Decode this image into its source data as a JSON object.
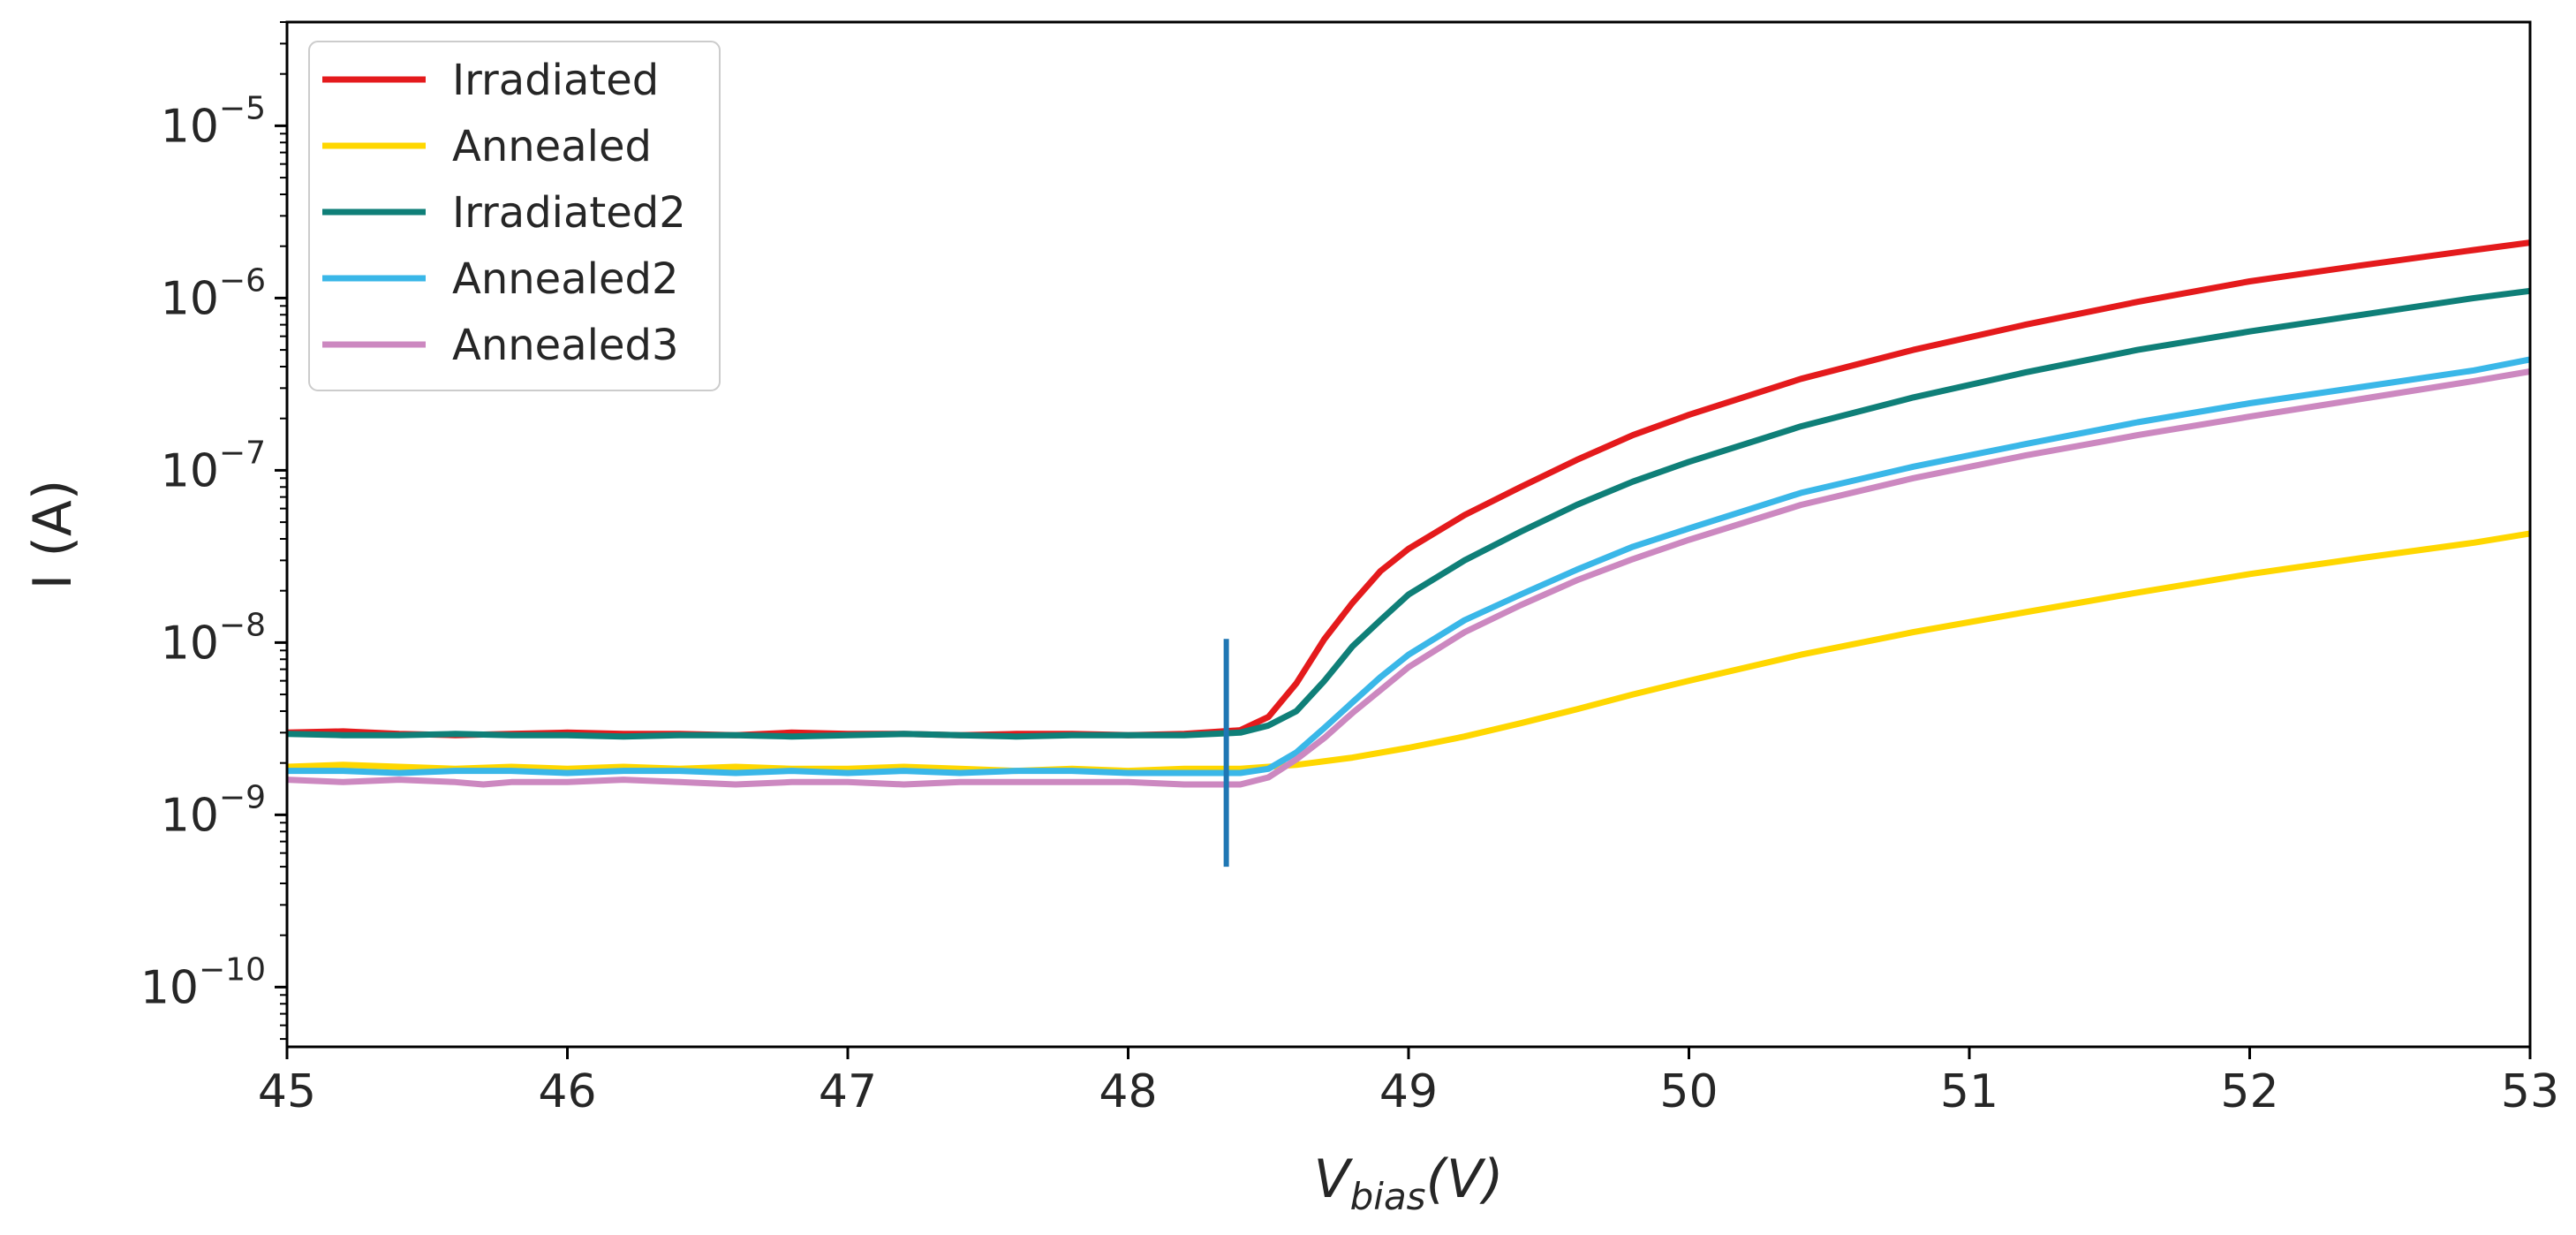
{
  "chart_data": {
    "type": "line",
    "title": "",
    "xlabel": "V",
    "xlabel_sub": "bias",
    "xlabel_unit": "(V)",
    "ylabel": "I (A)",
    "yscale": "log",
    "xlim": [
      45,
      53
    ],
    "ylim": [
      4.5e-11,
      4e-05
    ],
    "xticks": [
      "45",
      "46",
      "47",
      "48",
      "49",
      "50",
      "51",
      "52",
      "53"
    ],
    "yticks": [
      {
        "base": "10",
        "exp": "−10",
        "value": 1e-10
      },
      {
        "base": "10",
        "exp": "−9",
        "value": 1e-09
      },
      {
        "base": "10",
        "exp": "−8",
        "value": 1e-08
      },
      {
        "base": "10",
        "exp": "−7",
        "value": 1e-07
      },
      {
        "base": "10",
        "exp": "−6",
        "value": 1e-06
      },
      {
        "base": "10",
        "exp": "−5",
        "value": 1e-05
      }
    ],
    "legend_position": "top-left",
    "vertical_marker": {
      "x": 48.35,
      "ymin": 5e-10,
      "ymax": 1.05e-08,
      "color": "#1f77b4"
    },
    "series": [
      {
        "name": "Irradiated",
        "color": "#e41a1c",
        "points": [
          [
            45.0,
            3e-09
          ],
          [
            45.2,
            3.05e-09
          ],
          [
            45.4,
            2.95e-09
          ],
          [
            45.6,
            2.9e-09
          ],
          [
            45.8,
            2.95e-09
          ],
          [
            46.0,
            3e-09
          ],
          [
            46.2,
            2.95e-09
          ],
          [
            46.4,
            2.95e-09
          ],
          [
            46.6,
            2.9e-09
          ],
          [
            46.8,
            3e-09
          ],
          [
            47.0,
            2.95e-09
          ],
          [
            47.2,
            2.95e-09
          ],
          [
            47.4,
            2.9e-09
          ],
          [
            47.6,
            2.95e-09
          ],
          [
            47.8,
            2.95e-09
          ],
          [
            48.0,
            2.9e-09
          ],
          [
            48.2,
            2.95e-09
          ],
          [
            48.4,
            3.1e-09
          ],
          [
            48.5,
            3.7e-09
          ],
          [
            48.6,
            5.8e-09
          ],
          [
            48.7,
            1.05e-08
          ],
          [
            48.8,
            1.7e-08
          ],
          [
            48.9,
            2.6e-08
          ],
          [
            49.0,
            3.5e-08
          ],
          [
            49.2,
            5.5e-08
          ],
          [
            49.4,
            8e-08
          ],
          [
            49.6,
            1.15e-07
          ],
          [
            49.8,
            1.6e-07
          ],
          [
            50.0,
            2.1e-07
          ],
          [
            50.4,
            3.4e-07
          ],
          [
            50.8,
            5e-07
          ],
          [
            51.2,
            7e-07
          ],
          [
            51.6,
            9.5e-07
          ],
          [
            52.0,
            1.25e-06
          ],
          [
            52.4,
            1.55e-06
          ],
          [
            52.8,
            1.9e-06
          ],
          [
            53.0,
            2.1e-06
          ]
        ]
      },
      {
        "name": "Annealed",
        "color": "#ffd700",
        "points": [
          [
            45.0,
            1.9e-09
          ],
          [
            45.2,
            1.95e-09
          ],
          [
            45.4,
            1.9e-09
          ],
          [
            45.6,
            1.85e-09
          ],
          [
            45.8,
            1.9e-09
          ],
          [
            46.0,
            1.85e-09
          ],
          [
            46.2,
            1.9e-09
          ],
          [
            46.4,
            1.85e-09
          ],
          [
            46.6,
            1.9e-09
          ],
          [
            46.8,
            1.85e-09
          ],
          [
            47.0,
            1.85e-09
          ],
          [
            47.2,
            1.9e-09
          ],
          [
            47.4,
            1.85e-09
          ],
          [
            47.6,
            1.8e-09
          ],
          [
            47.8,
            1.85e-09
          ],
          [
            48.0,
            1.8e-09
          ],
          [
            48.2,
            1.85e-09
          ],
          [
            48.4,
            1.85e-09
          ],
          [
            48.6,
            1.95e-09
          ],
          [
            48.8,
            2.15e-09
          ],
          [
            49.0,
            2.45e-09
          ],
          [
            49.2,
            2.85e-09
          ],
          [
            49.4,
            3.4e-09
          ],
          [
            49.6,
            4.1e-09
          ],
          [
            49.8,
            5e-09
          ],
          [
            50.0,
            6e-09
          ],
          [
            50.4,
            8.5e-09
          ],
          [
            50.8,
            1.15e-08
          ],
          [
            51.2,
            1.5e-08
          ],
          [
            51.6,
            1.95e-08
          ],
          [
            52.0,
            2.5e-08
          ],
          [
            52.4,
            3.1e-08
          ],
          [
            52.8,
            3.8e-08
          ],
          [
            53.0,
            4.3e-08
          ]
        ]
      },
      {
        "name": "Irradiated2",
        "color": "#0f7f78",
        "points": [
          [
            45.0,
            2.95e-09
          ],
          [
            45.2,
            2.9e-09
          ],
          [
            45.4,
            2.9e-09
          ],
          [
            45.6,
            2.95e-09
          ],
          [
            45.8,
            2.9e-09
          ],
          [
            46.0,
            2.9e-09
          ],
          [
            46.2,
            2.85e-09
          ],
          [
            46.4,
            2.9e-09
          ],
          [
            46.6,
            2.9e-09
          ],
          [
            46.8,
            2.85e-09
          ],
          [
            47.0,
            2.9e-09
          ],
          [
            47.2,
            2.95e-09
          ],
          [
            47.4,
            2.9e-09
          ],
          [
            47.6,
            2.85e-09
          ],
          [
            47.8,
            2.9e-09
          ],
          [
            48.0,
            2.9e-09
          ],
          [
            48.2,
            2.9e-09
          ],
          [
            48.4,
            3e-09
          ],
          [
            48.5,
            3.3e-09
          ],
          [
            48.6,
            4e-09
          ],
          [
            48.7,
            6e-09
          ],
          [
            48.8,
            9.5e-09
          ],
          [
            48.9,
            1.35e-08
          ],
          [
            49.0,
            1.9e-08
          ],
          [
            49.2,
            3e-08
          ],
          [
            49.4,
            4.4e-08
          ],
          [
            49.6,
            6.3e-08
          ],
          [
            49.8,
            8.6e-08
          ],
          [
            50.0,
            1.12e-07
          ],
          [
            50.4,
            1.8e-07
          ],
          [
            50.8,
            2.65e-07
          ],
          [
            51.2,
            3.7e-07
          ],
          [
            51.6,
            5e-07
          ],
          [
            52.0,
            6.4e-07
          ],
          [
            52.4,
            8e-07
          ],
          [
            52.8,
            1e-06
          ],
          [
            53.0,
            1.1e-06
          ]
        ]
      },
      {
        "name": "Annealed2",
        "color": "#3ab7e8",
        "points": [
          [
            45.0,
            1.8e-09
          ],
          [
            45.2,
            1.8e-09
          ],
          [
            45.4,
            1.75e-09
          ],
          [
            45.6,
            1.8e-09
          ],
          [
            45.8,
            1.8e-09
          ],
          [
            46.0,
            1.75e-09
          ],
          [
            46.2,
            1.8e-09
          ],
          [
            46.4,
            1.8e-09
          ],
          [
            46.6,
            1.75e-09
          ],
          [
            46.8,
            1.8e-09
          ],
          [
            47.0,
            1.75e-09
          ],
          [
            47.2,
            1.8e-09
          ],
          [
            47.4,
            1.75e-09
          ],
          [
            47.6,
            1.8e-09
          ],
          [
            47.8,
            1.8e-09
          ],
          [
            48.0,
            1.75e-09
          ],
          [
            48.2,
            1.75e-09
          ],
          [
            48.4,
            1.75e-09
          ],
          [
            48.5,
            1.85e-09
          ],
          [
            48.6,
            2.3e-09
          ],
          [
            48.7,
            3.2e-09
          ],
          [
            48.8,
            4.5e-09
          ],
          [
            48.9,
            6.3e-09
          ],
          [
            49.0,
            8.5e-09
          ],
          [
            49.2,
            1.35e-08
          ],
          [
            49.4,
            1.9e-08
          ],
          [
            49.6,
            2.65e-08
          ],
          [
            49.8,
            3.6e-08
          ],
          [
            50.0,
            4.6e-08
          ],
          [
            50.4,
            7.4e-08
          ],
          [
            50.8,
            1.05e-07
          ],
          [
            51.2,
            1.42e-07
          ],
          [
            51.6,
            1.9e-07
          ],
          [
            52.0,
            2.45e-07
          ],
          [
            52.4,
            3.05e-07
          ],
          [
            52.8,
            3.8e-07
          ],
          [
            53.0,
            4.4e-07
          ]
        ]
      },
      {
        "name": "Annealed3",
        "color": "#cc88c0",
        "points": [
          [
            45.0,
            1.6e-09
          ],
          [
            45.2,
            1.55e-09
          ],
          [
            45.4,
            1.6e-09
          ],
          [
            45.6,
            1.55e-09
          ],
          [
            45.7,
            1.5e-09
          ],
          [
            45.8,
            1.55e-09
          ],
          [
            46.0,
            1.55e-09
          ],
          [
            46.2,
            1.6e-09
          ],
          [
            46.4,
            1.55e-09
          ],
          [
            46.6,
            1.5e-09
          ],
          [
            46.8,
            1.55e-09
          ],
          [
            47.0,
            1.55e-09
          ],
          [
            47.2,
            1.5e-09
          ],
          [
            47.4,
            1.55e-09
          ],
          [
            47.6,
            1.55e-09
          ],
          [
            47.8,
            1.55e-09
          ],
          [
            48.0,
            1.55e-09
          ],
          [
            48.2,
            1.5e-09
          ],
          [
            48.4,
            1.5e-09
          ],
          [
            48.5,
            1.65e-09
          ],
          [
            48.6,
            2.1e-09
          ],
          [
            48.7,
            2.8e-09
          ],
          [
            48.8,
            3.9e-09
          ],
          [
            48.9,
            5.3e-09
          ],
          [
            49.0,
            7.2e-09
          ],
          [
            49.2,
            1.15e-08
          ],
          [
            49.4,
            1.65e-08
          ],
          [
            49.6,
            2.3e-08
          ],
          [
            49.8,
            3.05e-08
          ],
          [
            50.0,
            3.95e-08
          ],
          [
            50.4,
            6.3e-08
          ],
          [
            50.8,
            9e-08
          ],
          [
            51.2,
            1.22e-07
          ],
          [
            51.6,
            1.6e-07
          ],
          [
            52.0,
            2.05e-07
          ],
          [
            52.4,
            2.6e-07
          ],
          [
            52.8,
            3.3e-07
          ],
          [
            53.0,
            3.75e-07
          ]
        ]
      }
    ]
  }
}
